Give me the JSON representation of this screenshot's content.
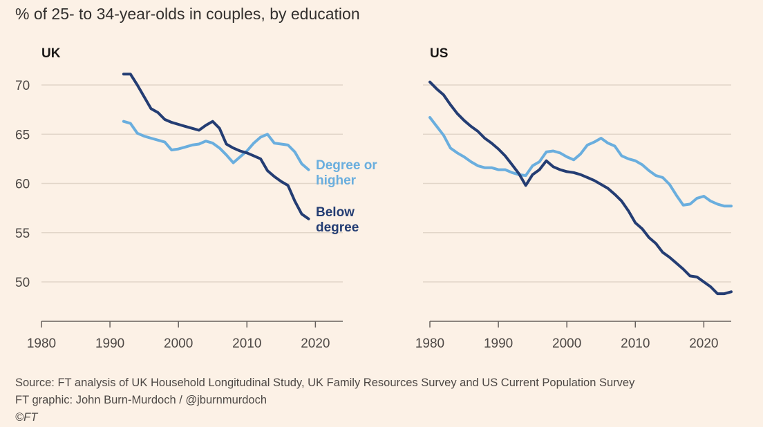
{
  "title": "% of 25- to 34-year-olds in couples, by education",
  "source": "Source: FT analysis of UK Household Longitudinal Study, UK Family Resources Survey and US Current Population Survey",
  "credit": "FT graphic: John Burn-Murdoch / @jburnmurdoch",
  "copyright": "©FT",
  "colors": {
    "degree": "#6aaede",
    "below": "#243d73"
  },
  "chart_data": [
    {
      "type": "line",
      "panel": "UK",
      "x_range": [
        1980,
        2024
      ],
      "y_range": [
        47,
        72
      ],
      "x_ticks": [
        1980,
        1990,
        2000,
        2010,
        2020
      ],
      "y_ticks": [
        50,
        55,
        60,
        65,
        70
      ],
      "grid": true,
      "series": [
        {
          "name": "Degree or higher",
          "label_lines": [
            "Degree or",
            "higher"
          ],
          "x": [
            1992,
            1993,
            1994,
            1995,
            1996,
            1997,
            1998,
            1999,
            2000,
            2001,
            2002,
            2003,
            2004,
            2005,
            2006,
            2007,
            2008,
            2009,
            2010,
            2011,
            2012,
            2013,
            2014,
            2015,
            2016,
            2017,
            2018,
            2019
          ],
          "y": [
            66.3,
            66.1,
            65.1,
            64.8,
            64.6,
            64.4,
            64.2,
            63.4,
            63.5,
            63.7,
            63.9,
            64.0,
            64.3,
            64.1,
            63.6,
            62.9,
            62.1,
            62.7,
            63.3,
            64.1,
            64.7,
            65.0,
            64.1,
            64.0,
            63.9,
            63.2,
            62.0,
            61.4
          ]
        },
        {
          "name": "Below degree",
          "label_lines": [
            "Below",
            "degree"
          ],
          "x": [
            1992,
            1993,
            1994,
            1995,
            1996,
            1997,
            1998,
            1999,
            2000,
            2001,
            2002,
            2003,
            2004,
            2005,
            2006,
            2007,
            2008,
            2009,
            2010,
            2011,
            2012,
            2013,
            2014,
            2015,
            2016,
            2017,
            2018,
            2019
          ],
          "y": [
            71.1,
            71.1,
            70.0,
            68.8,
            67.6,
            67.2,
            66.5,
            66.2,
            66.0,
            65.8,
            65.6,
            65.4,
            65.9,
            66.3,
            65.6,
            64.0,
            63.6,
            63.3,
            63.1,
            62.8,
            62.5,
            61.3,
            60.7,
            60.2,
            59.8,
            58.2,
            56.9,
            56.4
          ]
        }
      ]
    },
    {
      "type": "line",
      "panel": "US",
      "x_range": [
        1980,
        2024
      ],
      "y_range": [
        47,
        72
      ],
      "x_ticks": [
        1980,
        1990,
        2000,
        2010,
        2020
      ],
      "y_ticks": [
        50,
        55,
        60,
        65,
        70
      ],
      "grid": true,
      "series": [
        {
          "name": "Degree or higher",
          "x": [
            1980,
            1981,
            1982,
            1983,
            1984,
            1985,
            1986,
            1987,
            1988,
            1989,
            1990,
            1991,
            1992,
            1993,
            1994,
            1995,
            1996,
            1997,
            1998,
            1999,
            2000,
            2001,
            2002,
            2003,
            2004,
            2005,
            2006,
            2007,
            2008,
            2009,
            2010,
            2011,
            2012,
            2013,
            2014,
            2015,
            2016,
            2017,
            2018,
            2019,
            2020,
            2021,
            2022,
            2023,
            2024
          ],
          "y": [
            66.7,
            65.8,
            64.9,
            63.6,
            63.1,
            62.7,
            62.2,
            61.8,
            61.6,
            61.6,
            61.4,
            61.4,
            61.1,
            60.9,
            60.8,
            61.8,
            62.2,
            63.2,
            63.3,
            63.1,
            62.7,
            62.4,
            63.0,
            63.9,
            64.2,
            64.6,
            64.1,
            63.8,
            62.8,
            62.5,
            62.3,
            61.9,
            61.3,
            60.8,
            60.6,
            59.9,
            58.8,
            57.8,
            57.9,
            58.5,
            58.7,
            58.2,
            57.9,
            57.7,
            57.7
          ]
        },
        {
          "name": "Below degree",
          "x": [
            1980,
            1981,
            1982,
            1983,
            1984,
            1985,
            1986,
            1987,
            1988,
            1989,
            1990,
            1991,
            1992,
            1993,
            1994,
            1995,
            1996,
            1997,
            1998,
            1999,
            2000,
            2001,
            2002,
            2003,
            2004,
            2005,
            2006,
            2007,
            2008,
            2009,
            2010,
            2011,
            2012,
            2013,
            2014,
            2015,
            2016,
            2017,
            2018,
            2019,
            2020,
            2021,
            2022,
            2023,
            2024
          ],
          "y": [
            70.3,
            69.6,
            69.0,
            68.0,
            67.1,
            66.4,
            65.8,
            65.3,
            64.6,
            64.1,
            63.5,
            62.8,
            61.9,
            61.0,
            59.8,
            60.9,
            61.4,
            62.3,
            61.7,
            61.4,
            61.2,
            61.1,
            60.9,
            60.6,
            60.3,
            59.9,
            59.5,
            58.9,
            58.2,
            57.2,
            56.0,
            55.4,
            54.5,
            53.9,
            53.0,
            52.5,
            51.9,
            51.3,
            50.6,
            50.5,
            50.0,
            49.5,
            48.8,
            48.8,
            49.0
          ]
        }
      ]
    }
  ]
}
